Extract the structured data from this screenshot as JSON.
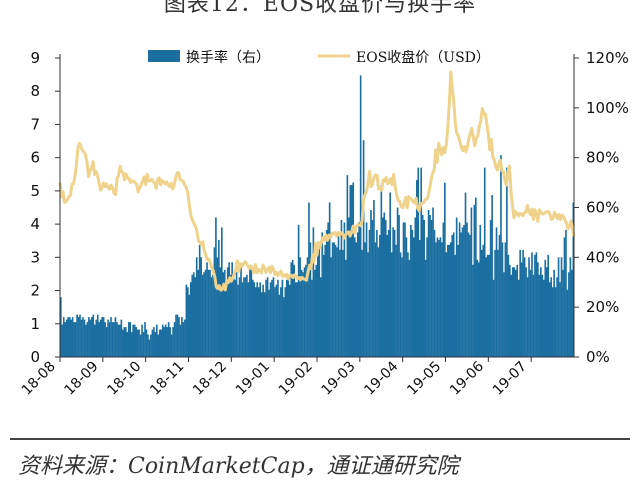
{
  "header": {
    "title": "图表12：EOS收盘价与换手率",
    "source": "资料来源：CoinMarketCap，通证通研究院"
  },
  "colors": {
    "bar": "#1a6ea0",
    "line": "#efd28c"
  },
  "chart_data": {
    "type": "bar+line",
    "x_labels": [
      "18-08",
      "18-09",
      "18-10",
      "18-11",
      "18-12",
      "19-01",
      "19-02",
      "19-03",
      "19-04",
      "19-05",
      "19-06",
      "19-07"
    ],
    "left_axis": {
      "ticks": [
        "0",
        "1",
        "2",
        "3",
        "4",
        "5",
        "6",
        "7",
        "8",
        "9"
      ],
      "range": [
        0,
        9
      ]
    },
    "right_axis": {
      "ticks": [
        "0%",
        "20%",
        "40%",
        "60%",
        "80%",
        "100%",
        "120%"
      ],
      "range": [
        0,
        120
      ]
    },
    "legend": [
      "换手率（右）",
      "EOS收盘价（USD）"
    ],
    "legend_position": "top",
    "series": [
      {
        "name": "换手率（右）",
        "type": "bar",
        "axis": "right",
        "unit": "%",
        "values": [
          24,
          13,
          16,
          14,
          15,
          16,
          16,
          15,
          16,
          14,
          14,
          17,
          16,
          17,
          15,
          16,
          15,
          13,
          14,
          16,
          15,
          16,
          17,
          13,
          15,
          17,
          14,
          15,
          16,
          16,
          14,
          12,
          15,
          14,
          16,
          14,
          14,
          16,
          14,
          13,
          13,
          15,
          11,
          12,
          12,
          10,
          14,
          14,
          10,
          13,
          13,
          12,
          11,
          11,
          9,
          13,
          10,
          14,
          11,
          9,
          7,
          9,
          11,
          12,
          10,
          13,
          9,
          11,
          11,
          13,
          12,
          13,
          12,
          14,
          12,
          9,
          12,
          14,
          17,
          17,
          16,
          13,
          16,
          14,
          15,
          29,
          28,
          25,
          30,
          33,
          34,
          32,
          40,
          35,
          45,
          40,
          33,
          34,
          35,
          38,
          35,
          35,
          32,
          33,
          44,
          56,
          40,
          47,
          36,
          52,
          34,
          35,
          30,
          36,
          38,
          33,
          38,
          33,
          31,
          34,
          29,
          32,
          37,
          30,
          32,
          32,
          33,
          30,
          35,
          37,
          31,
          30,
          28,
          30,
          28,
          30,
          26,
          29,
          26,
          31,
          32,
          27,
          30,
          31,
          32,
          28,
          29,
          31,
          25,
          28,
          31,
          24,
          28,
          31,
          31,
          29,
          38,
          39,
          37,
          30,
          30,
          53,
          40,
          35,
          34,
          36,
          37,
          40,
          62,
          46,
          31,
          52,
          35,
          37,
          42,
          44,
          32,
          50,
          41,
          45,
          51,
          54,
          62,
          40,
          46,
          46,
          45,
          44,
          49,
          43,
          55,
          43,
          54,
          39,
          73,
          56,
          69,
          69,
          70,
          48,
          46,
          50,
          54,
          113,
          43,
          87,
          46,
          54,
          42,
          51,
          59,
          55,
          63,
          46,
          51,
          44,
          49,
          69,
          56,
          58,
          55,
          49,
          51,
          66,
          42,
          52,
          51,
          45,
          60,
          57,
          42,
          40,
          54,
          54,
          48,
          42,
          39,
          53,
          51,
          48,
          56,
          71,
          76,
          47,
          76,
          57,
          55,
          39,
          48,
          59,
          57,
          55,
          60,
          51,
          46,
          48,
          47,
          48,
          46,
          54,
          70,
          42,
          45,
          45,
          46,
          49,
          50,
          41,
          56,
          45,
          54,
          50,
          52,
          53,
          66,
          54,
          50,
          49,
          60,
          37,
          61,
          64,
          39,
          38,
          53,
          43,
          45,
          76,
          40,
          41,
          41,
          55,
          65,
          31,
          43,
          52,
          43,
          49,
          81,
          46,
          34,
          46,
          76,
          41,
          37,
          33,
          36,
          36,
          35,
          37,
          31,
          43,
          38,
          43,
          40,
          36,
          32,
          40,
          35,
          42,
          33,
          41,
          42,
          38,
          33,
          36,
          33,
          31,
          39,
          36,
          41,
          30,
          32,
          28,
          35,
          28,
          32,
          40,
          30,
          40,
          35,
          48,
          51,
          27,
          34,
          40,
          35,
          62
        ]
      },
      {
        "name": "EOS收盘价（USD）",
        "type": "line",
        "axis": "left",
        "unit": "USD",
        "values": [
          5.25,
          4.82,
          4.98,
          4.65,
          4.68,
          4.74,
          4.83,
          4.86,
          5.2,
          5.21,
          5.45,
          5.81,
          6.31,
          6.43,
          6.32,
          6.21,
          6.17,
          6.09,
          5.85,
          5.43,
          5.61,
          5.69,
          5.88,
          5.49,
          5.58,
          5.45,
          5.23,
          5.02,
          5.1,
          5.24,
          5.13,
          5.21,
          5.1,
          5.05,
          5.17,
          5.09,
          4.92,
          4.89,
          5.38,
          5.47,
          5.74,
          5.58,
          5.54,
          5.33,
          5.51,
          5.39,
          5.36,
          5.25,
          5.31,
          5.29,
          5.25,
          5.2,
          4.97,
          5.09,
          5.19,
          5.3,
          5.42,
          5.19,
          5.5,
          5.3,
          5.3,
          5.35,
          5.28,
          5.22,
          5.08,
          5.35,
          5.39,
          5.18,
          5.31,
          5.27,
          5.21,
          5.27,
          5.17,
          5.13,
          5.23,
          5.06,
          5.17,
          5.4,
          5.54,
          5.54,
          5.33,
          5.31,
          5.29,
          5.19,
          5.1,
          4.96,
          4.57,
          4.26,
          4.13,
          4.03,
          3.95,
          3.8,
          3.51,
          3.44,
          3.38,
          3.47,
          3.19,
          3.06,
          2.93,
          2.95,
          2.84,
          2.69,
          2.6,
          2.41,
          2.11,
          2.06,
          2.15,
          2.01,
          2.04,
          2.19,
          2.02,
          2.3,
          2.24,
          2.39,
          2.28,
          2.38,
          2.52,
          2.62,
          2.9,
          2.57,
          2.81,
          2.73,
          2.79,
          2.87,
          2.82,
          2.74,
          2.66,
          2.74,
          2.66,
          2.53,
          2.78,
          2.54,
          2.64,
          2.59,
          2.53,
          2.77,
          2.69,
          2.55,
          2.63,
          2.69,
          2.54,
          2.73,
          2.65,
          2.48,
          2.55,
          2.45,
          2.52,
          2.59,
          2.43,
          2.47,
          2.43,
          2.49,
          2.35,
          2.45,
          2.46,
          2.39,
          2.47,
          2.44,
          2.35,
          2.39,
          2.32,
          2.4,
          2.35,
          2.34,
          2.31,
          2.57,
          2.76,
          2.66,
          3.08,
          2.86,
          3.42,
          3.06,
          3.45,
          3.3,
          3.47,
          3.59,
          3.52,
          3.67,
          3.51,
          3.67,
          3.59,
          3.71,
          3.73,
          3.74,
          3.63,
          3.75,
          3.66,
          3.74,
          3.73,
          3.58,
          3.68,
          3.73,
          3.77,
          3.64,
          3.75,
          3.94,
          3.73,
          3.91,
          3.98,
          3.98,
          3.95,
          4.1,
          4.76,
          4.9,
          4.99,
          5.25,
          5.59,
          5.13,
          5.21,
          5.41,
          5.48,
          5.47,
          5.06,
          5.06,
          5.02,
          5.33,
          5.3,
          5.4,
          5.22,
          5.26,
          5.36,
          5.19,
          5.49,
          5.12,
          4.87,
          4.71,
          4.69,
          4.54,
          4.49,
          4.64,
          4.8,
          4.49,
          4.83,
          4.77,
          4.74,
          4.67,
          4.64,
          4.78,
          4.47,
          4.4,
          4.61,
          4.62,
          4.65,
          4.74,
          4.75,
          4.84,
          5.08,
          5.34,
          5.54,
          5.63,
          6.23,
          5.86,
          6.43,
          6.25,
          6.09,
          6.3,
          6.15,
          6.4,
          6.91,
          7.62,
          8.58,
          8.09,
          7.67,
          7.04,
          6.73,
          6.65,
          6.49,
          6.32,
          6.21,
          6.33,
          6.18,
          6.31,
          6.57,
          6.72,
          6.88,
          6.62,
          6.36,
          6.58,
          6.66,
          6.95,
          7.1,
          7.48,
          7.32,
          7.32,
          7.02,
          6.71,
          6.23,
          6.55,
          6.03,
          5.93,
          5.73,
          5.63,
          5.85,
          5.92,
          5.61,
          5.58,
          5.31,
          5.17,
          5.59,
          5.75,
          5.01,
          4.57,
          4.19,
          4.38,
          4.33,
          4.24,
          4.32,
          4.31,
          4.25,
          4.34,
          4.36,
          4.56,
          4.37,
          4.29,
          4.45,
          4.14,
          4.43,
          4.32,
          4.08,
          4.43,
          4.36,
          4.3,
          4.32,
          4.36,
          4.37,
          4.38,
          4.29,
          4.14,
          4.17,
          4.36,
          4.26,
          4.17,
          4.29,
          4.13,
          4.27,
          4.23,
          4.12,
          4.02,
          3.86,
          3.95,
          4.1,
          3.84,
          3.63
        ]
      }
    ]
  }
}
